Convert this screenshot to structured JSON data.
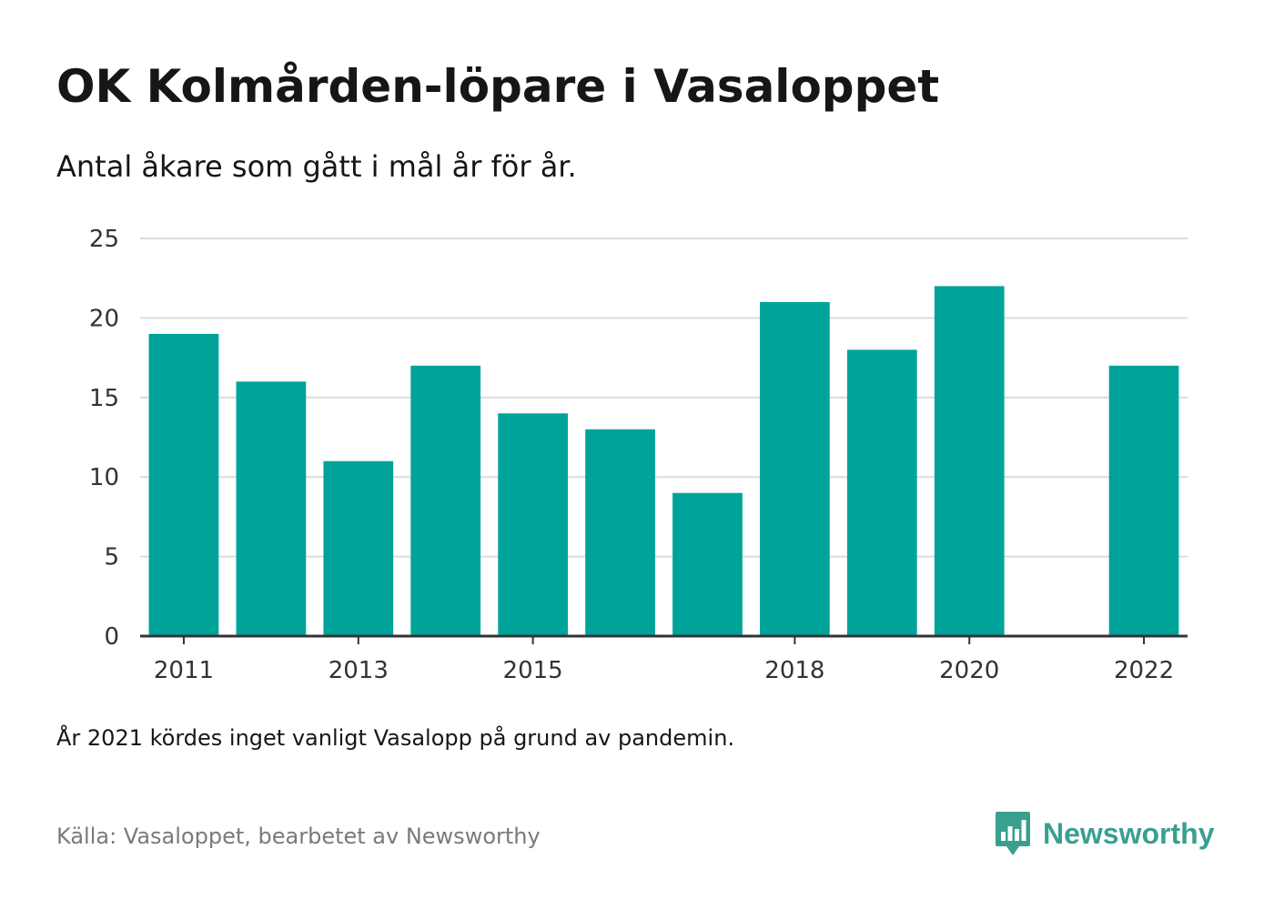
{
  "header": {
    "title": "OK Kolmården-löpare i Vasaloppet",
    "subtitle": "Antal åkare som gått i mål år för år."
  },
  "chart_data": {
    "type": "bar",
    "categories": [
      "2011",
      "2012",
      "2013",
      "2014",
      "2015",
      "2016",
      "2017",
      "2018",
      "2019",
      "2020",
      "2021",
      "2022"
    ],
    "values": [
      19,
      16,
      11,
      17,
      14,
      13,
      9,
      21,
      18,
      22,
      null,
      17
    ],
    "x_tick_labels": [
      "2011",
      "2013",
      "2015",
      "2018",
      "2020",
      "2022"
    ],
    "y_ticks": [
      "0",
      "5",
      "10",
      "15",
      "20",
      "25"
    ],
    "ylim": [
      0,
      25
    ],
    "grid": true,
    "bar_color": "#00a39a",
    "grid_color": "#dcdcdc",
    "axis_color": "#333333"
  },
  "footer": {
    "note": "År 2021 kördes inget vanligt Vasalopp på grund av pandemin.",
    "source": "Källa: Vasaloppet, bearbetet av Newsworthy"
  },
  "brand": {
    "name": "Newsworthy",
    "icon": "newsworthy-logo-icon",
    "color": "#3a9f8f"
  }
}
